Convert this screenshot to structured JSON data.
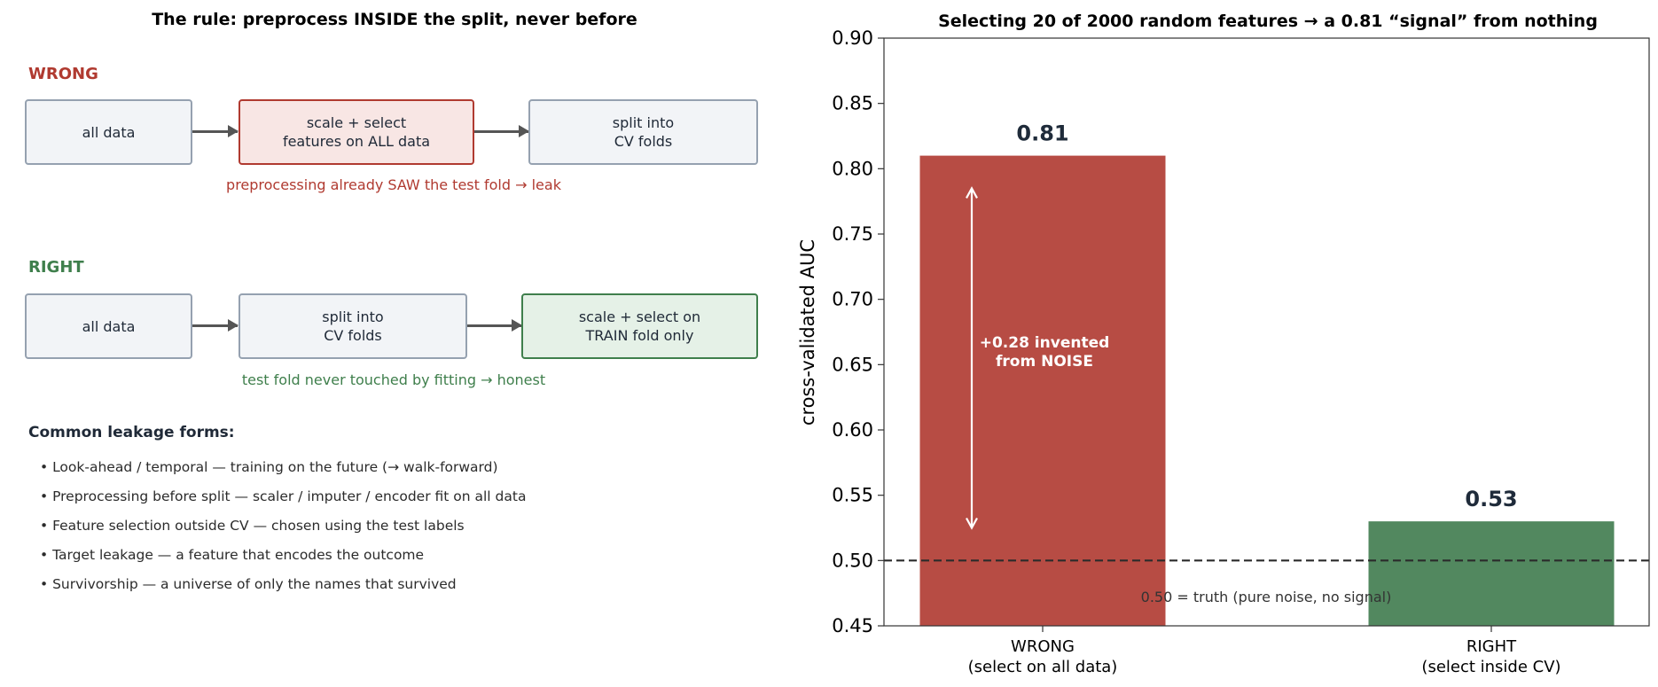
{
  "left": {
    "title": "The rule: preprocess INSIDE the split, never before",
    "wrong": {
      "label": "WRONG",
      "boxes": [
        "all data",
        "scale + select\nfeatures on ALL data",
        "split into\nCV folds"
      ],
      "note": "preprocessing already SAW the test fold → leak"
    },
    "right": {
      "label": "RIGHT",
      "boxes": [
        "all data",
        "split into\nCV folds",
        "scale + select on\nTRAIN fold only"
      ],
      "note": "test fold never touched by fitting → honest"
    },
    "forms_title": "Common leakage forms:",
    "forms": [
      "• Look-ahead / temporal — training on the future (→ walk-forward)",
      "• Preprocessing before split — scaler / imputer / encoder fit on all data",
      "• Feature selection outside CV — chosen using the test labels",
      "• Target leakage — a feature that encodes the outcome",
      "• Survivorship — a universe of only the names that survived"
    ]
  },
  "colors": {
    "wrong": "#b74c44",
    "right": "#52885f",
    "wrong_text": "#b03a30",
    "right_text": "#3f7f4c",
    "value_label": "#1f2b3a"
  },
  "chart_data": {
    "type": "bar",
    "title": "Selecting 20 of 2000 random features → a 0.81 “signal” from nothing",
    "ylabel": "cross-validated AUC",
    "xlabel": "",
    "categories": [
      "WRONG\n(select on all data)",
      "RIGHT\n(select inside CV)"
    ],
    "values": [
      0.81,
      0.53
    ],
    "value_labels": [
      "0.81",
      "0.53"
    ],
    "ylim": [
      0.45,
      0.9
    ],
    "yticks": [
      0.45,
      0.5,
      0.55,
      0.6,
      0.65,
      0.7,
      0.75,
      0.8,
      0.85,
      0.9
    ],
    "ytick_labels": [
      "0.45",
      "0.50",
      "0.55",
      "0.60",
      "0.65",
      "0.70",
      "0.75",
      "0.80",
      "0.85",
      "0.90"
    ],
    "reference_line": {
      "y": 0.5,
      "label": "0.50 = truth (pure noise, no signal)"
    },
    "annotation": {
      "text": "+0.28 invented\nfrom NOISE",
      "from": 0.525,
      "to": 0.785
    },
    "grid": false
  }
}
